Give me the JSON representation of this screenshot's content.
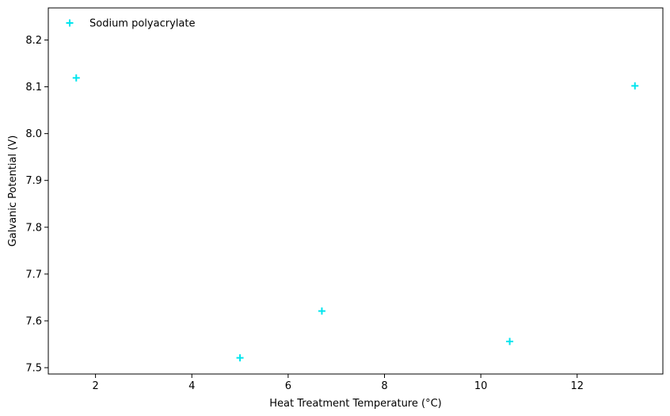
{
  "chart_data": {
    "type": "scatter",
    "title": "",
    "xlabel": "Heat Treatment Temperature (°C)",
    "ylabel": "Galvanic Potential (V)",
    "xlim": [
      1.02,
      13.78
    ],
    "ylim": [
      7.4865,
      8.2685
    ],
    "xticks": [
      2,
      4,
      6,
      8,
      10,
      12
    ],
    "yticks": [
      7.5,
      7.6,
      7.7,
      7.8,
      7.9,
      8.0,
      8.1,
      8.2
    ],
    "grid": false,
    "legend_position": "top-left",
    "series": [
      {
        "name": "Sodium polyacrylate",
        "marker": "plus",
        "color": "#00e5ee",
        "points": [
          {
            "x": 1.6,
            "y": 8.119
          },
          {
            "x": 5.0,
            "y": 7.521
          },
          {
            "x": 6.7,
            "y": 7.621
          },
          {
            "x": 10.6,
            "y": 7.556
          },
          {
            "x": 13.2,
            "y": 8.102
          }
        ]
      }
    ]
  }
}
